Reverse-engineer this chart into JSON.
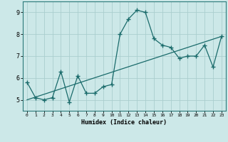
{
  "xlabel": "Humidex (Indice chaleur)",
  "bg_color": "#cce8e8",
  "line_color": "#1a6b6b",
  "grid_color": "#aacece",
  "xlim": [
    -0.5,
    23.5
  ],
  "ylim": [
    4.5,
    9.5
  ],
  "xticks": [
    0,
    1,
    2,
    3,
    4,
    5,
    6,
    7,
    8,
    9,
    10,
    11,
    12,
    13,
    14,
    15,
    16,
    17,
    18,
    19,
    20,
    21,
    22,
    23
  ],
  "yticks": [
    5,
    6,
    7,
    8,
    9
  ],
  "line1_x": [
    0,
    1,
    2,
    3,
    4,
    5,
    6,
    7,
    8,
    9,
    10,
    11,
    12,
    13,
    14,
    15,
    16,
    17,
    18,
    19,
    20,
    21,
    22,
    23
  ],
  "line1_y": [
    5.8,
    5.1,
    5.0,
    5.1,
    6.3,
    4.9,
    6.1,
    5.3,
    5.3,
    5.6,
    5.7,
    8.0,
    8.7,
    9.1,
    9.0,
    7.8,
    7.5,
    7.4,
    6.9,
    7.0,
    7.0,
    7.5,
    6.5,
    7.9
  ],
  "line2_x": [
    0,
    23
  ],
  "line2_y": [
    5.0,
    7.9
  ]
}
